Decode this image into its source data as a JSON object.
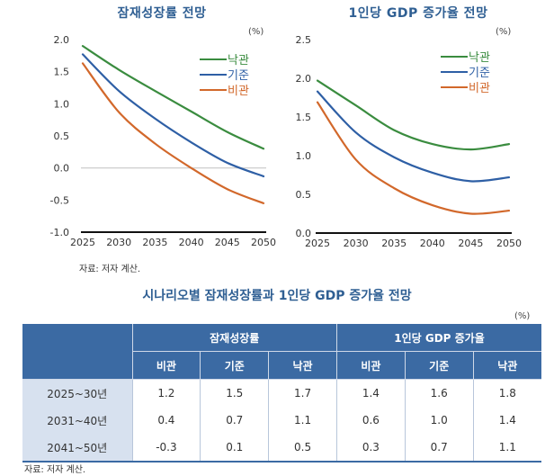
{
  "chart_data": [
    {
      "type": "line",
      "title": "잠재성장률 전망",
      "unit": "(%)",
      "x": [
        2025,
        2030,
        2035,
        2040,
        2045,
        2050
      ],
      "xlabel": "",
      "ylabel": "",
      "ylim": [
        -1.0,
        2.0
      ],
      "yticks": [
        "2.0",
        "1.5",
        "1.0",
        "0.5",
        "0.0",
        "-0.5",
        "-1.0"
      ],
      "xticks": [
        "2025",
        "2030",
        "2035",
        "2040",
        "2045",
        "2050"
      ],
      "grid": false,
      "zero_line": true,
      "legend": "top-right",
      "series": [
        {
          "name": "낙관",
          "color": "#3a8c3f",
          "values": [
            1.9,
            1.53,
            1.2,
            0.88,
            0.56,
            0.3
          ]
        },
        {
          "name": "기준",
          "color": "#2e5fa5",
          "values": [
            1.77,
            1.2,
            0.77,
            0.4,
            0.08,
            -0.13
          ]
        },
        {
          "name": "비관",
          "color": "#d2682b",
          "values": [
            1.63,
            0.87,
            0.38,
            0.0,
            -0.33,
            -0.55
          ]
        }
      ],
      "source": "자료: 저자 계산."
    },
    {
      "type": "line",
      "title": "1인당 GDP 증가율 전망",
      "unit": "(%)",
      "x": [
        2025,
        2030,
        2035,
        2040,
        2045,
        2050
      ],
      "xlabel": "",
      "ylabel": "",
      "ylim": [
        0.0,
        2.5
      ],
      "yticks": [
        "2.5",
        "2.0",
        "1.5",
        "1.0",
        "0.5",
        "0.0"
      ],
      "xticks": [
        "2025",
        "2030",
        "2035",
        "2040",
        "2045",
        "2050"
      ],
      "grid": false,
      "legend": "top-right",
      "series": [
        {
          "name": "낙관",
          "color": "#3a8c3f",
          "values": [
            1.97,
            1.65,
            1.33,
            1.15,
            1.08,
            1.15
          ]
        },
        {
          "name": "기준",
          "color": "#2e5fa5",
          "values": [
            1.83,
            1.3,
            0.98,
            0.78,
            0.67,
            0.72
          ]
        },
        {
          "name": "비관",
          "color": "#d2682b",
          "values": [
            1.69,
            0.95,
            0.58,
            0.36,
            0.25,
            0.29
          ]
        }
      ]
    }
  ],
  "table": {
    "title": "시나리오별 잠재성장률과 1인당 GDP 증가율 전망",
    "unit": "(%)",
    "group_headers": [
      "잠재성장률",
      "1인당 GDP 증가율"
    ],
    "sub_headers": [
      "비관",
      "기준",
      "낙관",
      "비관",
      "기준",
      "낙관"
    ],
    "rows": [
      {
        "label": "2025~30년",
        "values": [
          "1.2",
          "1.5",
          "1.7",
          "1.4",
          "1.6",
          "1.8"
        ]
      },
      {
        "label": "2031~40년",
        "values": [
          "0.4",
          "0.7",
          "1.1",
          "0.6",
          "1.0",
          "1.4"
        ]
      },
      {
        "label": "2041~50년",
        "values": [
          "-0.3",
          "0.1",
          "0.5",
          "0.3",
          "0.7",
          "1.1"
        ]
      }
    ],
    "source": "자료: 저자 계산."
  }
}
